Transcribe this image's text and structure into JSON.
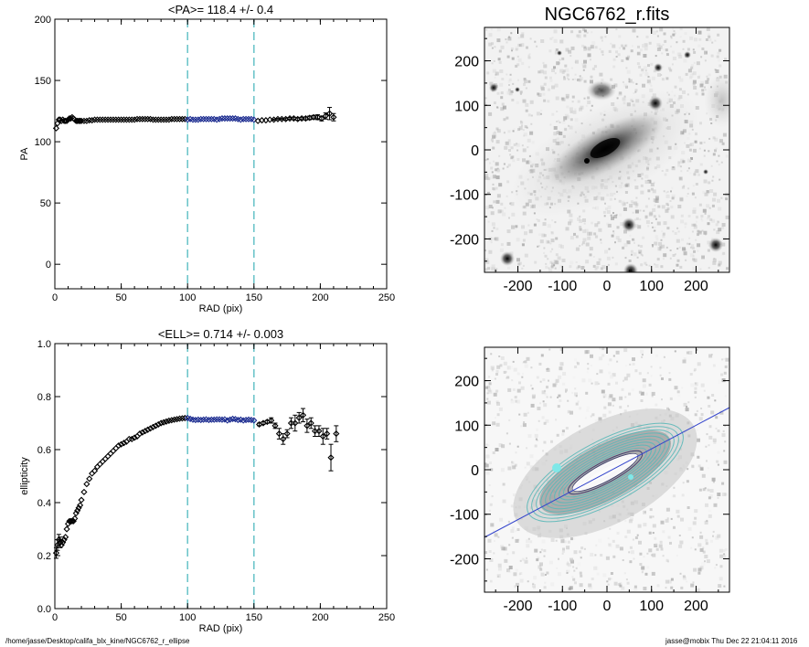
{
  "footer": {
    "path": "/home/jasse/Desktop/califa_blx_kine/NGC6762_r_ellipse",
    "user_time": "jasse@mobix  Thu Dec 22 21:04:11 2016"
  },
  "colors": {
    "ref_line": "#66c2c8",
    "in_range": "#1a2a8f",
    "out_range": "#000000",
    "contour": "#5bb8b8",
    "pa_line": "#3344cc"
  },
  "chart_data": [
    {
      "type": "scatter",
      "title": "<PA>= 118.4 +/-   0.4",
      "xlabel": "RAD (pix)",
      "ylabel": "PA",
      "xlim": [
        0,
        250
      ],
      "ylim": [
        -20,
        200
      ],
      "xticks": [
        "0",
        "50",
        "100",
        "150",
        "200",
        "250"
      ],
      "yticks": [
        "0",
        "50",
        "100",
        "150",
        "200"
      ],
      "ref_lines_x": [
        100,
        150
      ],
      "series": [
        {
          "x": [
            1,
            2,
            3,
            4,
            5,
            6,
            7,
            8,
            9,
            10,
            11,
            12,
            13,
            14,
            15,
            16,
            17,
            18,
            19,
            20,
            22,
            24,
            26,
            28,
            30,
            32,
            34,
            36,
            38,
            40,
            42,
            44,
            46,
            48,
            50,
            52,
            54,
            56,
            58,
            60,
            62,
            64,
            66,
            68,
            70,
            72,
            74,
            76,
            78,
            80,
            82,
            84,
            86,
            88,
            90,
            92,
            94,
            96,
            98,
            100,
            102,
            104,
            106,
            108,
            110,
            112,
            114,
            116,
            118,
            120,
            122,
            124,
            126,
            128,
            130,
            132,
            134,
            136,
            138,
            140,
            142,
            144,
            146,
            148,
            150,
            153,
            156,
            159,
            162,
            165,
            168,
            171,
            174,
            177,
            180,
            183,
            186,
            189,
            192,
            195,
            198,
            201,
            204,
            207,
            210
          ],
          "y": [
            111,
            115,
            118,
            118,
            117,
            118,
            117,
            117,
            117,
            118,
            119,
            119,
            120,
            119,
            118,
            117,
            117,
            117,
            117,
            117,
            117,
            117,
            117.5,
            117.5,
            118,
            118,
            118,
            118,
            118,
            118,
            118,
            118,
            118,
            118,
            118,
            118,
            118,
            118,
            118,
            118,
            118.5,
            118.5,
            118.5,
            118.5,
            118.5,
            118.5,
            118,
            118,
            118,
            118,
            118,
            118,
            118,
            118.5,
            118.5,
            118.5,
            118.5,
            118.5,
            118.5,
            118,
            118.5,
            118,
            118,
            118,
            118.5,
            118.5,
            118.5,
            118.5,
            118.5,
            118.5,
            118,
            118.5,
            119,
            119,
            119,
            119,
            119,
            119,
            118.5,
            118,
            118.5,
            118.5,
            118.5,
            118.5,
            118,
            117,
            117.5,
            117.5,
            118,
            118,
            118.5,
            118.5,
            118.5,
            119,
            119,
            118.5,
            119,
            119,
            119.5,
            120,
            120,
            119,
            121,
            123,
            120
          ],
          "err": [
            0,
            0,
            0,
            0,
            0,
            0,
            0,
            0,
            0,
            0,
            0,
            0,
            0,
            0,
            0,
            0,
            0,
            0,
            0,
            0,
            0,
            0,
            0,
            0,
            0,
            0,
            0,
            0,
            0,
            0,
            0,
            0,
            0,
            0,
            0,
            0,
            0,
            0,
            0,
            0,
            0,
            0,
            0,
            0,
            0,
            0,
            0,
            0,
            0,
            0,
            0,
            0,
            0,
            0,
            0,
            0,
            0,
            0,
            0,
            0,
            0,
            0,
            0,
            0,
            0,
            0,
            0,
            0,
            0,
            0,
            0,
            0,
            0,
            0,
            0,
            0,
            0,
            0,
            0,
            0,
            0,
            0,
            0,
            0,
            0,
            0,
            0,
            0,
            0,
            0.5,
            0.5,
            0.5,
            0.8,
            0.8,
            1,
            1,
            1,
            1.2,
            1.5,
            1.5,
            2,
            2,
            2.5,
            5,
            3
          ]
        }
      ]
    },
    {
      "type": "scatter",
      "title": "<ELL>= 0.714 +/-  0.003",
      "xlabel": "RAD (pix)",
      "ylabel": "ellipticity",
      "xlim": [
        0,
        250
      ],
      "ylim": [
        0.0,
        1.0
      ],
      "xticks": [
        "0",
        "50",
        "100",
        "150",
        "200",
        "250"
      ],
      "yticks": [
        "0.0",
        "0.2",
        "0.4",
        "0.6",
        "0.8",
        "1.0"
      ],
      "ref_lines_x": [
        100,
        150
      ],
      "series": [
        {
          "x": [
            1,
            2,
            3,
            4,
            5,
            6,
            7,
            8,
            9,
            10,
            11,
            12,
            13,
            14,
            15,
            16,
            17,
            18,
            19,
            20,
            22,
            24,
            26,
            28,
            30,
            32,
            34,
            36,
            38,
            40,
            42,
            44,
            46,
            48,
            50,
            52,
            54,
            56,
            58,
            60,
            62,
            64,
            66,
            68,
            70,
            72,
            74,
            76,
            78,
            80,
            82,
            84,
            86,
            88,
            90,
            92,
            94,
            96,
            98,
            100,
            102,
            104,
            106,
            108,
            110,
            112,
            114,
            116,
            118,
            120,
            122,
            124,
            126,
            128,
            130,
            132,
            134,
            136,
            138,
            140,
            142,
            144,
            146,
            148,
            150,
            154,
            157,
            160,
            163,
            166,
            169,
            172,
            175,
            178,
            181,
            184,
            187,
            190,
            193,
            196,
            199,
            202,
            205,
            208,
            212
          ],
          "y": [
            0.21,
            0.24,
            0.26,
            0.25,
            0.24,
            0.25,
            0.26,
            0.27,
            0.3,
            0.32,
            0.33,
            0.33,
            0.33,
            0.33,
            0.34,
            0.36,
            0.37,
            0.38,
            0.39,
            0.41,
            0.44,
            0.47,
            0.49,
            0.51,
            0.52,
            0.535,
            0.545,
            0.555,
            0.565,
            0.575,
            0.585,
            0.595,
            0.605,
            0.615,
            0.62,
            0.625,
            0.63,
            0.64,
            0.64,
            0.645,
            0.65,
            0.66,
            0.665,
            0.67,
            0.675,
            0.68,
            0.685,
            0.69,
            0.695,
            0.7,
            0.703,
            0.706,
            0.709,
            0.711,
            0.713,
            0.715,
            0.717,
            0.718,
            0.719,
            0.719,
            0.716,
            0.713,
            0.712,
            0.713,
            0.712,
            0.713,
            0.714,
            0.712,
            0.713,
            0.713,
            0.714,
            0.714,
            0.713,
            0.714,
            0.71,
            0.713,
            0.716,
            0.715,
            0.712,
            0.713,
            0.71,
            0.712,
            0.713,
            0.712,
            0.71,
            0.695,
            0.7,
            0.705,
            0.71,
            0.69,
            0.66,
            0.64,
            0.66,
            0.7,
            0.7,
            0.72,
            0.73,
            0.69,
            0.7,
            0.67,
            0.67,
            0.65,
            0.66,
            0.57,
            0.66
          ],
          "err": [
            0.02,
            0.02,
            0.02,
            0.02,
            0,
            0,
            0,
            0,
            0,
            0,
            0,
            0,
            0,
            0,
            0,
            0,
            0,
            0,
            0,
            0,
            0,
            0,
            0,
            0,
            0,
            0,
            0,
            0,
            0,
            0,
            0,
            0,
            0,
            0,
            0,
            0,
            0,
            0,
            0,
            0,
            0,
            0,
            0,
            0,
            0,
            0,
            0,
            0,
            0,
            0,
            0,
            0,
            0,
            0,
            0,
            0,
            0,
            0,
            0,
            0,
            0,
            0,
            0,
            0,
            0,
            0,
            0,
            0,
            0,
            0,
            0,
            0,
            0,
            0,
            0,
            0,
            0,
            0,
            0,
            0,
            0,
            0,
            0,
            0,
            0,
            0.005,
            0.005,
            0.005,
            0.01,
            0.01,
            0.02,
            0.02,
            0.015,
            0.02,
            0.03,
            0.02,
            0.025,
            0.025,
            0.02,
            0.02,
            0.02,
            0.03,
            0.02,
            0.05,
            0.03
          ]
        }
      ]
    },
    {
      "type": "heatmap",
      "title": "NGC6762_r.fits",
      "xlim": [
        -275,
        275
      ],
      "ylim": [
        -275,
        275
      ],
      "xticks": [
        "-200",
        "-100",
        "0",
        "100",
        "200"
      ],
      "yticks": [
        "-200",
        "-100",
        "0",
        "100",
        "200"
      ]
    },
    {
      "type": "heatmap",
      "title": "",
      "xlim": [
        -275,
        275
      ],
      "ylim": [
        -275,
        275
      ],
      "xticks": [
        "-200",
        "-100",
        "0",
        "100",
        "200"
      ],
      "yticks": [
        "-200",
        "-100",
        "0",
        "100",
        "200"
      ]
    }
  ]
}
